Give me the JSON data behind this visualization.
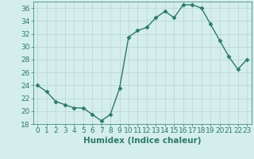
{
  "x": [
    0,
    1,
    2,
    3,
    4,
    5,
    6,
    7,
    8,
    9,
    10,
    11,
    12,
    13,
    14,
    15,
    16,
    17,
    18,
    19,
    20,
    21,
    22,
    23
  ],
  "y": [
    24,
    23,
    21.5,
    21,
    20.5,
    20.5,
    19.5,
    18.5,
    19.5,
    23.5,
    31.5,
    32.5,
    33,
    34.5,
    35.5,
    34.5,
    36.5,
    36.5,
    36,
    33.5,
    31,
    28.5,
    26.5,
    28
  ],
  "line_color": "#2d7a6a",
  "marker": "D",
  "marker_size": 2.5,
  "bg_color": "#d4eeed",
  "grid_color": "#b8d4d0",
  "xlabel": "Humidex (Indice chaleur)",
  "ylim": [
    18,
    37
  ],
  "xlim": [
    -0.5,
    23.5
  ],
  "yticks": [
    18,
    20,
    22,
    24,
    26,
    28,
    30,
    32,
    34,
    36
  ],
  "xticks": [
    0,
    1,
    2,
    3,
    4,
    5,
    6,
    7,
    8,
    9,
    10,
    11,
    12,
    13,
    14,
    15,
    16,
    17,
    18,
    19,
    20,
    21,
    22,
    23
  ],
  "tick_fontsize": 6.5,
  "xlabel_fontsize": 7.5
}
